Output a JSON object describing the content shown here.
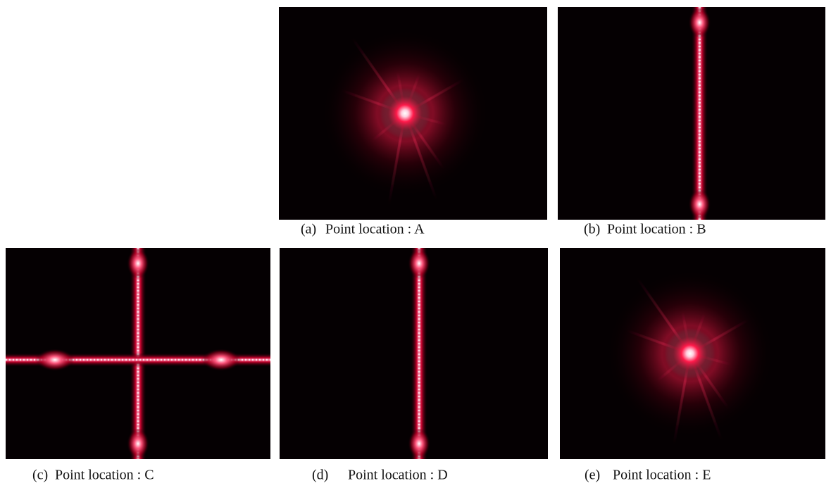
{
  "panels": [
    {
      "label": "(a)",
      "caption": "Point location : A"
    },
    {
      "label": "(b)",
      "caption": "Point location : B"
    },
    {
      "label": "(c)",
      "caption": "Point location : C"
    },
    {
      "label": "(d)",
      "caption": "Point location : D"
    },
    {
      "label": "(e)",
      "caption": "Point location : E"
    }
  ]
}
